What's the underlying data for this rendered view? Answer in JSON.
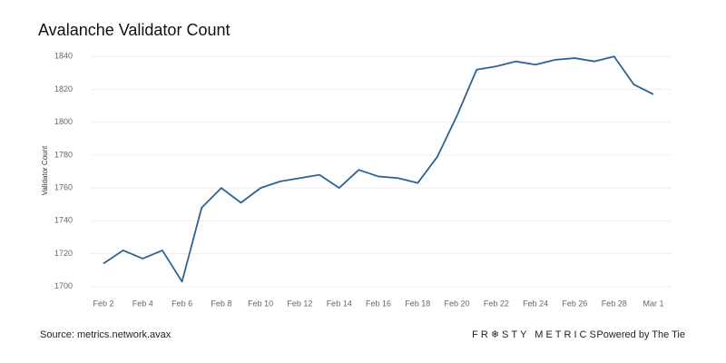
{
  "chart_data": {
    "type": "line",
    "title": "Avalanche Validator Count",
    "y_label": "Validator Count",
    "categories": [
      "Feb 2",
      null,
      "Feb 4",
      null,
      "Feb 6",
      null,
      "Feb 8",
      null,
      "Feb 10",
      null,
      "Feb 12",
      null,
      "Feb 14",
      null,
      "Feb 16",
      null,
      "Feb 18",
      null,
      "Feb 20",
      null,
      "Feb 22",
      null,
      "Feb 24",
      null,
      "Feb 26",
      null,
      "Feb 28",
      null,
      "Mar 1"
    ],
    "series": [
      {
        "name": "Validator Count",
        "color": "#2e6290",
        "values": [
          1714,
          1722,
          1717,
          1722,
          1703,
          1748,
          1760,
          1751,
          1760,
          1764,
          1766,
          1768,
          1760,
          1771,
          1767,
          1766,
          1763,
          1779,
          1804,
          1832,
          1834,
          1837,
          1835,
          1838,
          1839,
          1837,
          1840,
          1823,
          1817
        ]
      }
    ],
    "ylim": [
      1696,
      1844
    ],
    "yticks": [
      1700,
      1720,
      1740,
      1760,
      1780,
      1800,
      1820,
      1840
    ],
    "grid": true
  },
  "footer": {
    "source": "Source: metrics.network.avax",
    "brand": "FR❄STY METRICS",
    "powered_by": "Powered by The Tie"
  }
}
